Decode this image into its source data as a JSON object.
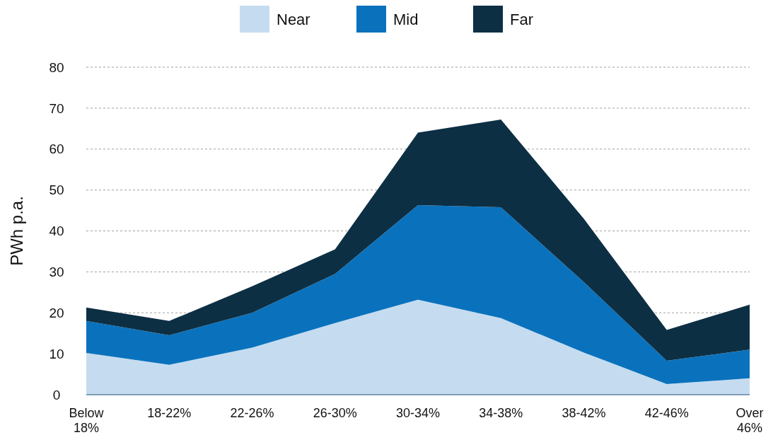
{
  "chart_data": {
    "type": "area",
    "stacked": true,
    "ylabel": "PWh p.a.",
    "categories": [
      "Below 18%",
      "18-22%",
      "22-26%",
      "26-30%",
      "30-34%",
      "34-38%",
      "38-42%",
      "42-46%",
      "Over 46%"
    ],
    "series": [
      {
        "name": "Near",
        "color": "#c5dcf0",
        "values": [
          10.2,
          7.3,
          11.5,
          17.5,
          23.2,
          18.7,
          10.3,
          2.6,
          4
        ]
      },
      {
        "name": "Mid",
        "color": "#0a72bd",
        "values": [
          7.8,
          7.2,
          8.5,
          12,
          23.1,
          27.1,
          17.2,
          5.7,
          7
        ]
      },
      {
        "name": "Far",
        "color": "#0c2f44",
        "values": [
          3.3,
          3.5,
          6.5,
          6,
          17.7,
          21.4,
          15.5,
          7.5,
          11
        ]
      }
    ],
    "ylim": [
      0,
      80
    ],
    "yticks": [
      0,
      10,
      20,
      30,
      40,
      50,
      60,
      70,
      80
    ],
    "grid": "y",
    "legend": "top"
  }
}
